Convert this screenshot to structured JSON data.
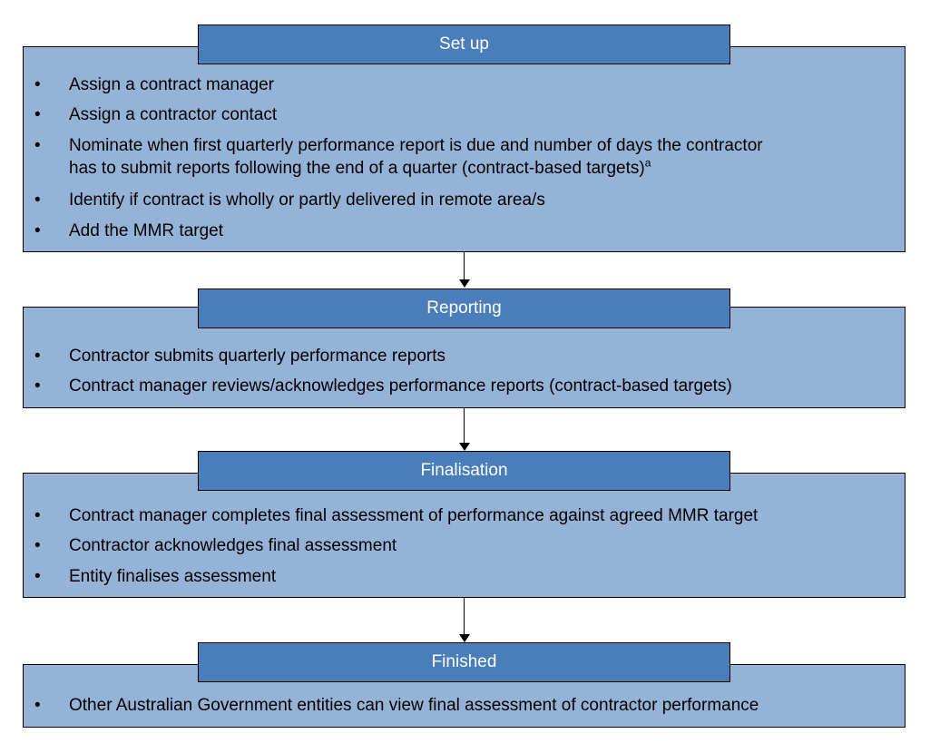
{
  "stages": [
    {
      "title": "Set up",
      "items": [
        "Assign a contract manager",
        "Assign a contractor contact",
        "Nominate when first quarterly performance report is due and number of days the contractor",
        "has to submit reports following the end of a quarter (contract-based targets)",
        "Identify if contract is wholly or partly delivered in remote area/s",
        "Add the MMR target"
      ],
      "footnote_marker": "a"
    },
    {
      "title": "Reporting",
      "items": [
        "Contractor submits quarterly performance reports",
        "Contract manager reviews/acknowledges performance reports (contract-based targets)"
      ]
    },
    {
      "title": "Finalisation",
      "items": [
        "Contract manager completes final assessment of performance against agreed MMR target",
        "Contractor acknowledges final assessment",
        "Entity finalises assessment"
      ]
    },
    {
      "title": "Finished",
      "items": [
        "Other Australian Government entities can view final assessment of contractor performance"
      ]
    }
  ],
  "bullet": "•"
}
